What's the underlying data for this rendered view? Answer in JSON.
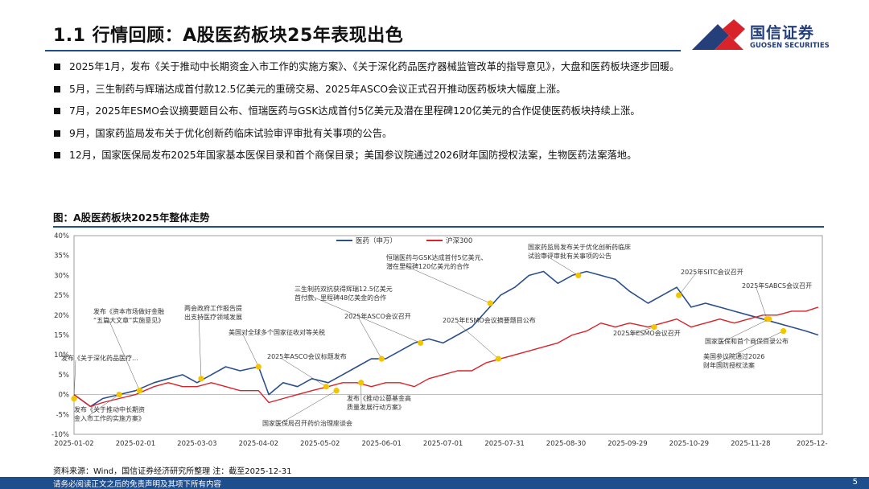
{
  "header": {
    "title": "1.1 行情回顾：A股医药板块25年表现出色",
    "logo_cn": "国信证券",
    "logo_en": "GUOSEN SECURITIES"
  },
  "bullets": [
    "2025年1月，发布《关于推动中长期资金入市工作的实施方案》、《关于深化药品医疗器械监管改革的指导意见》，大盘和医药板块逐步回暖。",
    "5月，三生制药与辉瑞达成首付款12.5亿美元的重磅交易、2025年ASCO会议正式召开推动医药板块大幅度上涨。",
    "7月，2025年ESMO会议摘要题目公布、恒瑞医药与GSK达成首付5亿美元及潜在里程碑120亿美元的合作促使医药板块持续上涨。",
    "9月，国家药监局发布关于优化创新药临床试验审评审批有关事项的公告。",
    "12月，国家医保局发布2025年国家基本医保目录和首个商保目录；美国参议院通过2026财年国防授权法案，生物医药法案落地。"
  ],
  "figure_title": "图：A股医药板块2025年整体走势",
  "source": "资料来源：Wind，国信证券经济研究所整理  注：截至2025-12-31",
  "footer": {
    "disclaimer": "请务必阅读正文之后的免责声明及其项下所有内容",
    "page": "5"
  },
  "colors": {
    "brand": "#1f4e8c",
    "pharma": "#2b4f8c",
    "hs300": "#d8232a",
    "marker": "#f5c400",
    "logo_red": "#d8232a"
  },
  "chart_data": {
    "type": "line",
    "title": "",
    "ylim": [
      -10,
      40
    ],
    "yticks": [
      "40%",
      "35%",
      "30%",
      "25%",
      "20%",
      "15%",
      "10%",
      "5%",
      "0%",
      "-5%",
      "-10%"
    ],
    "xticks": [
      "2025-01-02",
      "2025-02-01",
      "2025-03-03",
      "2025-04-02",
      "2025-05-02",
      "2025-06-01",
      "2025-07-01",
      "2025-07-31",
      "2025-08-30",
      "2025-09-29",
      "2025-10-29",
      "2025-11-28",
      "2025-12-"
    ],
    "x": [
      "2025-01-02",
      "2025-01-10",
      "2025-01-16",
      "2025-01-24",
      "2025-02-01",
      "2025-02-10",
      "2025-02-17",
      "2025-02-24",
      "2025-03-03",
      "2025-03-10",
      "2025-03-17",
      "2025-03-24",
      "2025-04-02",
      "2025-04-07",
      "2025-04-14",
      "2025-04-21",
      "2025-04-28",
      "2025-05-06",
      "2025-05-13",
      "2025-05-20",
      "2025-05-27",
      "2025-06-03",
      "2025-06-10",
      "2025-06-17",
      "2025-06-24",
      "2025-07-01",
      "2025-07-08",
      "2025-07-15",
      "2025-07-22",
      "2025-07-29",
      "2025-08-05",
      "2025-08-12",
      "2025-08-19",
      "2025-08-26",
      "2025-09-02",
      "2025-09-09",
      "2025-09-16",
      "2025-09-23",
      "2025-09-30",
      "2025-10-09",
      "2025-10-16",
      "2025-10-23",
      "2025-10-30",
      "2025-11-06",
      "2025-11-13",
      "2025-11-20",
      "2025-11-27",
      "2025-12-04",
      "2025-12-11",
      "2025-12-18",
      "2025-12-25",
      "2025-12-31"
    ],
    "series": [
      {
        "name": "医药（申万）",
        "values": [
          0,
          -3,
          -1,
          0,
          1,
          3,
          4,
          5,
          3,
          5,
          7,
          6,
          7,
          0,
          3,
          2,
          4,
          3,
          5,
          7,
          9,
          9,
          11,
          13,
          14,
          13,
          15,
          17,
          21,
          25,
          27,
          30,
          31,
          28,
          30,
          31,
          30,
          29,
          26,
          23,
          25,
          27,
          22,
          23,
          22,
          21,
          20,
          19,
          18,
          17,
          16,
          15
        ]
      },
      {
        "name": "沪深300",
        "values": [
          0,
          -3,
          -2,
          -1,
          0,
          2,
          3,
          2,
          2,
          3,
          2,
          1,
          1,
          -2,
          -1,
          0,
          1,
          2,
          3,
          3,
          2,
          3,
          3,
          2,
          4,
          5,
          6,
          6,
          8,
          9,
          10,
          11,
          12,
          13,
          15,
          16,
          18,
          17,
          18,
          17,
          18,
          19,
          17,
          18,
          19,
          18,
          19,
          20,
          20,
          21,
          21,
          22
        ]
      }
    ],
    "legend": [
      "医药（申万）",
      "沪深300"
    ],
    "legend_position": "top",
    "annotations": [
      {
        "x": "2025-01-02",
        "value": -1,
        "text": [
          "发布《关于深化药品医疗…"
        ]
      },
      {
        "x": "2025-01-24",
        "value": 0,
        "text": [
          "发布《关于推动中长期资",
          "金入市工作的实施方案》"
        ]
      },
      {
        "x": "2025-02-03",
        "value": 1,
        "text": [
          "发布《资本市场做好金融",
          "“五篇大文章”实施意见》"
        ]
      },
      {
        "x": "2025-03-05",
        "value": 4,
        "text": [
          "两会政府工作报告提",
          "出支持医疗领域发展"
        ]
      },
      {
        "x": "2025-04-02",
        "value": 7,
        "text": [
          "美国对全球多个国家征收对等关税"
        ]
      },
      {
        "x": "2025-05-05",
        "value": 2,
        "text": [
          "2025年ASCO会议标题发布"
        ]
      },
      {
        "x": "2025-05-10",
        "value": 1,
        "text": [
          "国家医保局召开药价治理座谈会"
        ]
      },
      {
        "x": "2025-05-22",
        "value": 3,
        "text": [
          "发布《推动公募基金高",
          "质量发展行动方案》"
        ]
      },
      {
        "x": "2025-06-01",
        "value": 9,
        "text": [
          "2025年ASCO会议召开"
        ]
      },
      {
        "x": "2025-06-20",
        "value": 13,
        "text": [
          "三生制药双抗获得辉瑞12.5亿美元",
          "首付款，里程碑48亿美金的合作"
        ]
      },
      {
        "x": "2025-07-24",
        "value": 23,
        "text": [
          "恒瑞医药与GSK达成首付5亿美元、",
          "潜在里程碑120亿美元的合作"
        ]
      },
      {
        "x": "2025-07-28",
        "value": 9,
        "text": [
          "2025年ESMO会议摘要题目公布"
        ]
      },
      {
        "x": "2025-09-05",
        "value": 30,
        "text": [
          "国家药监局发布关于优化创新药临床",
          "试验审评审批有关事项的公告"
        ]
      },
      {
        "x": "2025-10-12",
        "value": 17,
        "text": [
          "2025年ESMO会议召开"
        ]
      },
      {
        "x": "2025-10-24",
        "value": 25,
        "text": [
          "2025年SITC会议召开"
        ]
      },
      {
        "x": "2025-12-06",
        "value": 19,
        "text": [
          "2025年SABCS会议召开"
        ]
      },
      {
        "x": "2025-12-07",
        "value": 19,
        "text": [
          "国家医保和首个商保目录公布"
        ]
      },
      {
        "x": "2025-12-14",
        "value": 16,
        "text": [
          "美国参议院通过2026",
          "财年国防授权法案"
        ]
      }
    ],
    "grid": false
  }
}
